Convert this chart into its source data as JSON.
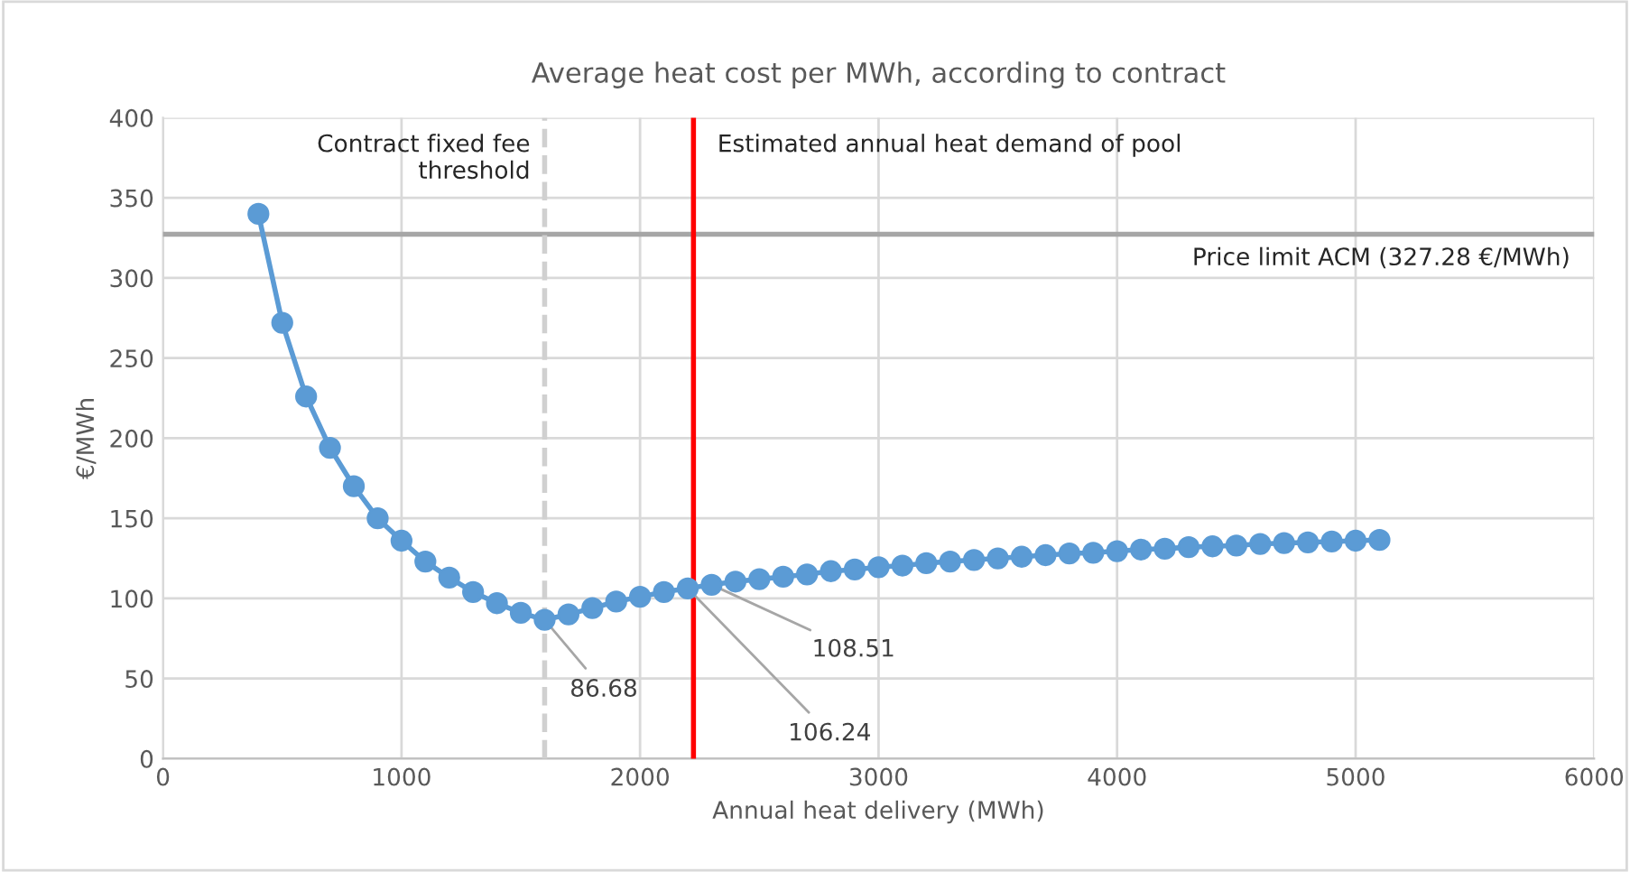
{
  "chart_data": {
    "type": "line",
    "title": "Average heat cost per MWh, according to contract",
    "xlabel": "Annual heat delivery (MWh)",
    "ylabel": "€/MWh",
    "x": [
      400,
      500,
      600,
      700,
      800,
      900,
      1000,
      1100,
      1200,
      1300,
      1400,
      1500,
      1600,
      1700,
      1800,
      1900,
      2000,
      2100,
      2200,
      2300,
      2400,
      2500,
      2600,
      2700,
      2800,
      2900,
      3000,
      3100,
      3200,
      3300,
      3400,
      3500,
      3600,
      3700,
      3800,
      3900,
      4000,
      4100,
      4200,
      4300,
      4400,
      4500,
      4600,
      4700,
      4800,
      4900,
      5000,
      5100
    ],
    "series": [
      {
        "color": "#5b9bd5",
        "values": [
          340,
          272,
          226,
          194,
          170,
          150,
          136,
          123,
          113,
          104,
          97,
          91,
          86.68,
          90,
          94,
          98,
          101,
          104,
          106.24,
          108.51,
          110.5,
          112,
          113.5,
          115,
          117,
          118,
          119.5,
          120.5,
          122,
          123,
          124,
          125,
          126,
          127,
          128,
          128.5,
          129.5,
          130.5,
          131,
          132,
          132.5,
          133,
          134,
          134.5,
          135,
          135.5,
          136,
          136.5
        ]
      }
    ],
    "xlim": [
      0,
      6000
    ],
    "xticks": [
      0,
      1000,
      2000,
      3000,
      4000,
      5000,
      6000
    ],
    "ylim": [
      0,
      400
    ],
    "yticks": [
      0,
      50,
      100,
      150,
      200,
      250,
      300,
      350,
      400
    ],
    "grid": true,
    "marker": "circle",
    "line_style": "solid",
    "legend": false,
    "ref_lines": [
      {
        "axis": "y",
        "value": 327.28,
        "label": "Price limit ACM (327.28 €/MWh)",
        "color": "#a6a6a6",
        "line_style": "solid"
      },
      {
        "axis": "x",
        "value": 1600,
        "label": "Contract fixed fee\nthreshold",
        "color": "#d0d0d0",
        "line_style": "dashed"
      },
      {
        "axis": "x",
        "value": 2224,
        "label": "Estimated annual heat demand of pool",
        "color": "#ff0000",
        "line_style": "solid"
      }
    ],
    "annotations": [
      {
        "text": "86.68",
        "x": 1600,
        "y": 86.68
      },
      {
        "text": "106.24",
        "x": 2200,
        "y": 106.24
      },
      {
        "text": "108.51",
        "x": 2300,
        "y": 108.51
      }
    ]
  }
}
